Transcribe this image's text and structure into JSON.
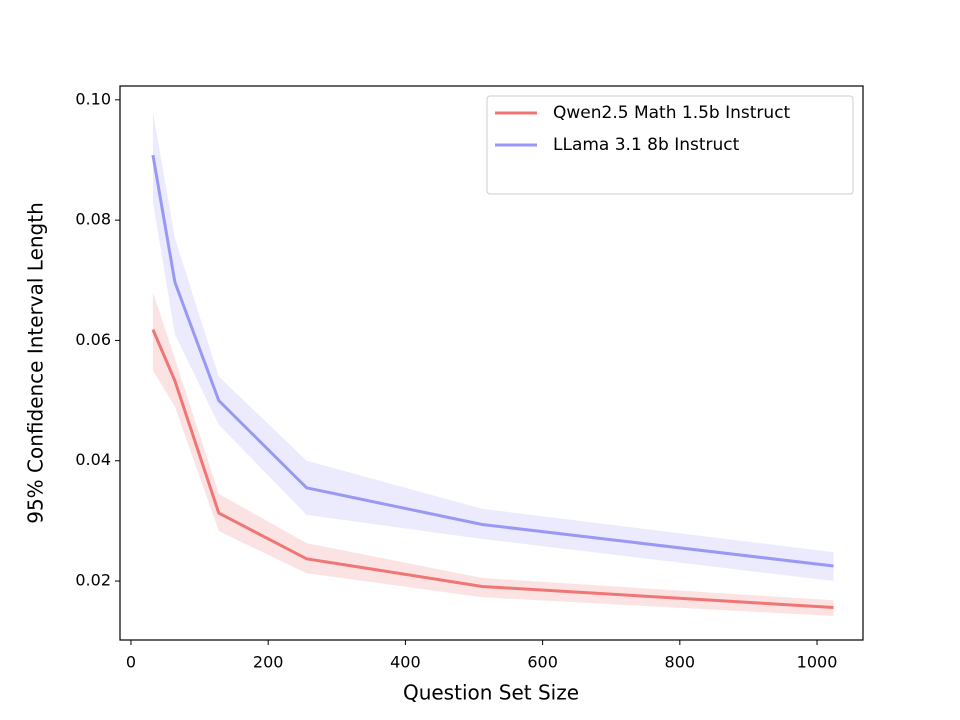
{
  "chart_data": {
    "type": "line",
    "xlabel": "Question Set Size",
    "ylabel": "95% Confidence Interval Length",
    "x": [
      32,
      64,
      128,
      256,
      512,
      1024
    ],
    "series": [
      {
        "name": "Qwen2.5 Math 1.5b Instruct",
        "color": "#f07575",
        "values": [
          0.0618,
          0.0533,
          0.0313,
          0.0237,
          0.0191,
          0.0156
        ],
        "lower": [
          0.055,
          0.049,
          0.0283,
          0.0213,
          0.0173,
          0.0142
        ],
        "upper": [
          0.068,
          0.057,
          0.0345,
          0.0263,
          0.0205,
          0.0168
        ]
      },
      {
        "name": "LLama 3.1 8b Instruct",
        "color": "#9999f5",
        "values": [
          0.0908,
          0.0697,
          0.05,
          0.0355,
          0.0294,
          0.0225
        ],
        "lower": [
          0.083,
          0.061,
          0.046,
          0.031,
          0.027,
          0.02
        ],
        "upper": [
          0.098,
          0.077,
          0.054,
          0.04,
          0.032,
          0.0248
        ]
      }
    ],
    "xlim": [
      -16,
      1067
    ],
    "xticks": [
      0,
      200,
      400,
      600,
      800,
      1000
    ],
    "ylim": [
      0.0102,
      0.1023
    ],
    "yticks": [
      0.02,
      0.04,
      0.06,
      0.08,
      {
        "value": 0.1,
        "label": "0.10"
      }
    ],
    "legend": "upper right",
    "grid": false
  }
}
